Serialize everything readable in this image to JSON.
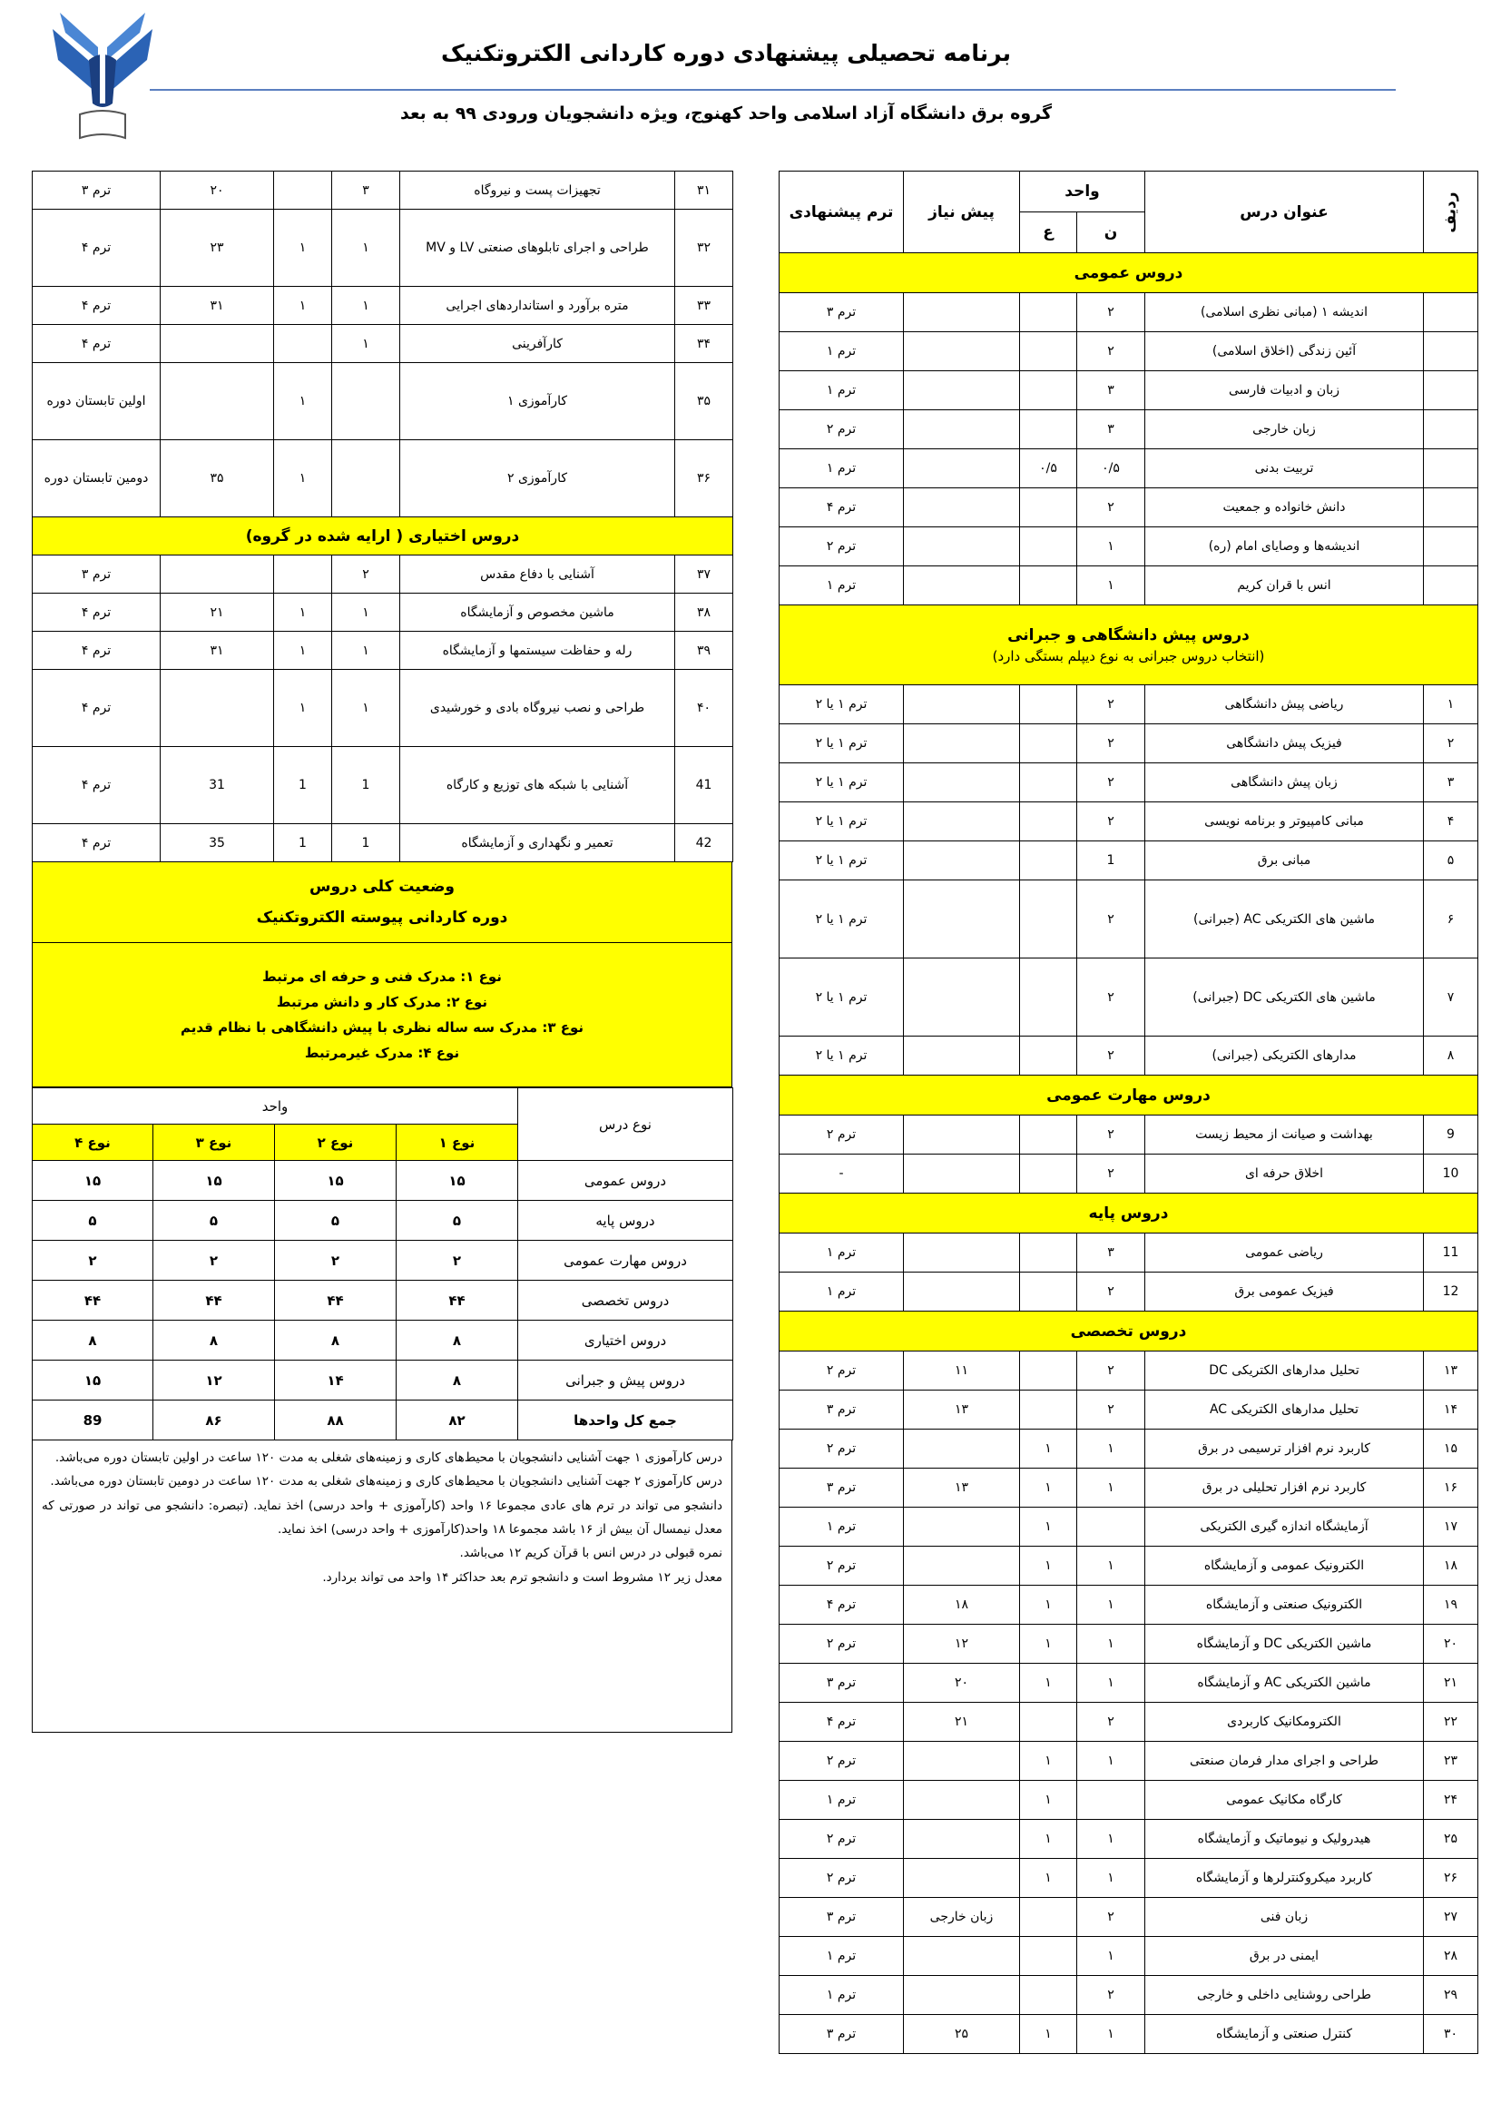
{
  "header": {
    "title": "برنامه تحصیلی پیشنهادی دوره کاردانی الکتروتکنیک",
    "subtitle": "گروه برق دانشگاه آزاد اسلامی واحد کهنوج، ویژه دانشجویان ورودی ۹۹ به بعد"
  },
  "right_table": {
    "columns": {
      "row": "ردیف",
      "title": "عنوان درس",
      "units": "واحد",
      "theory": "ن",
      "practical": "ع",
      "prereq": "پیش نیاز",
      "term": "ترم پیشنهادی"
    },
    "sections": [
      {
        "title": "دروس عمومی",
        "rows": [
          [
            null,
            "اندیشه ۱ (مبانی نظری اسلامی)",
            "۲",
            null,
            null,
            "ترم ۳"
          ],
          [
            null,
            "آئین زندگی (اخلاق اسلامی)",
            "۲",
            null,
            null,
            "ترم ۱"
          ],
          [
            null,
            "زبان و ادبیات فارسی",
            "۳",
            null,
            null,
            "ترم ۱"
          ],
          [
            null,
            "زبان خارجی",
            "۳",
            null,
            null,
            "ترم ۲"
          ],
          [
            null,
            "تربیت بدنی",
            "۰/۵",
            "۰/۵",
            null,
            "ترم ۱"
          ],
          [
            null,
            "دانش خانواده و جمعیت",
            "۲",
            null,
            null,
            "ترم ۴"
          ],
          [
            null,
            "اندیشه‌ها و وصایای امام (ره)",
            "۱",
            null,
            null,
            "ترم ۲"
          ],
          [
            null,
            "انس با قران کریم",
            "۱",
            null,
            null,
            "ترم ۱"
          ]
        ]
      },
      {
        "title": "دروس پیش دانشگاهی و جبرانی",
        "subtitle": "(انتخاب دروس جبرانی به نوع دیپلم بستگی دارد)",
        "rows": [
          [
            "۱",
            "ریاضی پیش دانشگاهی",
            "۲",
            null,
            null,
            "ترم ۱ یا ۲"
          ],
          [
            "۲",
            "فیزیک پیش دانشگاهی",
            "۲",
            null,
            null,
            "ترم ۱ یا ۲"
          ],
          [
            "۳",
            "زبان پیش دانشگاهی",
            "۲",
            null,
            null,
            "ترم ۱ یا ۲"
          ],
          [
            "۴",
            "مبانی کامپیوتر و برنامه نویسی",
            "۲",
            null,
            null,
            "ترم ۱ یا ۲"
          ],
          [
            "۵",
            "مبانی برق",
            "1",
            null,
            null,
            "ترم ۱ یا ۲"
          ],
          [
            "۶",
            "ماشین های الکتریکی AC (جبرانی)",
            "۲",
            null,
            null,
            "ترم ۱ یا ۲"
          ],
          [
            "۷",
            "ماشین های الکتریکی DC (جبرانی)",
            "۲",
            null,
            null,
            "ترم ۱ یا ۲"
          ],
          [
            "۸",
            "مدارهای الکتریکی (جبرانی)",
            "۲",
            null,
            null,
            "ترم ۱ یا ۲"
          ]
        ]
      },
      {
        "title": "دروس مهارت عمومی",
        "rows": [
          [
            "9",
            "بهداشت و صیانت از محیط زیست",
            "۲",
            null,
            null,
            "ترم ۲"
          ],
          [
            "10",
            "اخلاق حرفه ای",
            "۲",
            null,
            null,
            "-"
          ]
        ]
      },
      {
        "title": "دروس پایه",
        "rows": [
          [
            "11",
            "ریاضی عمومی",
            "۳",
            null,
            null,
            "ترم ۱"
          ],
          [
            "12",
            "فیزیک عمومی برق",
            "۲",
            null,
            null,
            "ترم ۱"
          ]
        ]
      },
      {
        "title": "دروس تخصصی",
        "rows": [
          [
            "۱۳",
            "تحلیل مدارهای الکتریکی DC",
            "۲",
            null,
            "۱۱",
            "ترم ۲"
          ],
          [
            "۱۴",
            "تحلیل مدارهای الکتریکی AC",
            "۲",
            null,
            "۱۳",
            "ترم ۳"
          ],
          [
            "۱۵",
            "کاربرد نرم افزار ترسیمی در برق",
            "۱",
            "۱",
            null,
            "ترم ۲"
          ],
          [
            "۱۶",
            "کاربرد نرم افزار تحلیلی در برق",
            "۱",
            "۱",
            "۱۳",
            "ترم ۳"
          ],
          [
            "۱۷",
            "آزمایشگاه اندازه گیری الکتریکی",
            null,
            "۱",
            null,
            "ترم ۱"
          ],
          [
            "۱۸",
            "الکترونیک عمومی و آزمایشگاه",
            "۱",
            "۱",
            null,
            "ترم ۲"
          ],
          [
            "۱۹",
            "الکترونیک صنعتی و آزمایشگاه",
            "۱",
            "۱",
            "۱۸",
            "ترم ۴"
          ],
          [
            "۲۰",
            "ماشین الکتریکی DC و آزمایشگاه",
            "۱",
            "۱",
            "۱۲",
            "ترم ۲"
          ],
          [
            "۲۱",
            "ماشین الکتریکی AC و آزمایشگاه",
            "۱",
            "۱",
            "۲۰",
            "ترم ۳"
          ],
          [
            "۲۲",
            "الکترومکانیک کاربردی",
            "۲",
            null,
            "۲۱",
            "ترم ۴"
          ],
          [
            "۲۳",
            "طراحی و اجرای مدار فرمان صنعتی",
            "۱",
            "۱",
            null,
            "ترم ۲"
          ],
          [
            "۲۴",
            "کارگاه مکانیک عمومی",
            null,
            "۱",
            null,
            "ترم ۱"
          ],
          [
            "۲۵",
            "هیدرولیک و نیوماتیک و آزمایشگاه",
            "۱",
            "۱",
            null,
            "ترم ۲"
          ],
          [
            "۲۶",
            "کاربرد میکروکنترلرها و آزمایشگاه",
            "۱",
            "۱",
            null,
            "ترم ۲"
          ],
          [
            "۲۷",
            "زبان فنی",
            "۲",
            null,
            "زبان خارجی",
            "ترم ۳"
          ],
          [
            "۲۸",
            "ایمنی در برق",
            "۱",
            null,
            null,
            "ترم ۱"
          ],
          [
            "۲۹",
            "طراحی روشنایی داخلی و خارجی",
            "۲",
            null,
            null,
            "ترم ۱"
          ],
          [
            "۳۰",
            "کنترل صنعتی و آزمایشگاه",
            "۱",
            "۱",
            "۲۵",
            "ترم ۳"
          ]
        ]
      }
    ]
  },
  "left_table": {
    "rows": [
      [
        "۳۱",
        "تجهیزات پست و نیروگاه",
        "۳",
        null,
        "۲۰",
        "ترم ۳"
      ],
      [
        "۳۲",
        "طراحی و اجرای تابلوهای صنعتی LV و MV",
        "۱",
        "۱",
        "۲۳",
        "ترم ۴"
      ],
      [
        "۳۳",
        "متره برآورد و استانداردهای اجرایی",
        "۱",
        "۱",
        "۳۱",
        "ترم ۴"
      ],
      [
        "۳۴",
        "کارآفرینی",
        "۱",
        null,
        null,
        "ترم ۴"
      ],
      [
        "۳۵",
        "کارآموزی ۱",
        null,
        "۱",
        null,
        "اولین تابستان دوره"
      ],
      [
        "۳۶",
        "کارآموزی ۲",
        null,
        "۱",
        "۳۵",
        "دومین تابستان دوره"
      ]
    ],
    "sections": [
      {
        "title": "دروس اختیاری ( ارایه شده در گروه)",
        "rows": [
          [
            "۳۷",
            "آشنایی با دفاع مقدس",
            "۲",
            null,
            null,
            "ترم ۳"
          ],
          [
            "۳۸",
            "ماشین مخصوص و آزمایشگاه",
            "۱",
            "۱",
            "۲۱",
            "ترم ۴"
          ],
          [
            "۳۹",
            "رله و حفاظت سیستمها و آزمایشگاه",
            "۱",
            "۱",
            "۳۱",
            "ترم ۴"
          ],
          [
            "۴۰",
            "طراحی و نصب نیروگاه بادی و خورشیدی",
            "۱",
            "۱",
            null,
            "ترم ۴"
          ],
          [
            "41",
            "آشنایی با شبکه های توزیع و کارگاه",
            "1",
            "1",
            "31",
            "ترم ۴"
          ],
          [
            "42",
            "تعمیر و نگهداری و آزمایشگاه",
            "1",
            "1",
            "35",
            "ترم ۴"
          ]
        ]
      }
    ]
  },
  "status": {
    "title": [
      "وضعیت کلی دروس",
      "دوره کاردانی پیوسته الکتروتکنیک"
    ],
    "types": [
      "نوع ۱: مدرک فنی و حرفه ای مرتبط",
      "نوع ۲: مدرک کار و دانش مرتبط",
      "نوع ۳: مدرک سه ساله نظری با پیش دانشگاهی با نظام قدیم",
      "نوع ۴: مدرک غیرمرتبط"
    ],
    "summary": {
      "columns": {
        "course_type": "نوع درس",
        "units": "واحد",
        "types": [
          "نوع ۱",
          "نوع ۲",
          "نوع ۳",
          "نوع ۴"
        ]
      },
      "rows": [
        [
          "دروس عمومی",
          "۱۵",
          "۱۵",
          "۱۵",
          "۱۵"
        ],
        [
          "دروس پایه",
          "۵",
          "۵",
          "۵",
          "۵"
        ],
        [
          "دروس مهارت عمومی",
          "۲",
          "۲",
          "۲",
          "۲"
        ],
        [
          "دروس تخصصی",
          "۴۴",
          "۴۴",
          "۴۴",
          "۴۴"
        ],
        [
          "دروس اختیاری",
          "۸",
          "۸",
          "۸",
          "۸"
        ],
        [
          "دروس پیش و جبرانی",
          "۸",
          "۱۴",
          "۱۲",
          "۱۵"
        ],
        [
          "جمع کل واحدها",
          "۸۲",
          "۸۸",
          "۸۶",
          "89"
        ]
      ]
    },
    "notes": [
      "درس کارآموزی ۱ جهت آشنایی دانشجویان با محیط‌های کاری و زمینه‌های شغلی به مدت ۱۲۰ ساعت در اولین تابستان دوره می‌باشد.",
      "درس کارآموزی ۲ جهت آشنایی دانشجویان با محیط‌های کاری و زمینه‌های شغلی به مدت ۱۲۰ ساعت در دومین تابستان دوره می‌باشد.",
      "دانشجو می تواند در ترم های عادی مجموعا ۱۶ واحد (کارآموزی + واحد درسی) اخذ نماید. (تبصره: دانشجو می تواند در صورتی که معدل نیمسال آن بیش از ۱۶ باشد مجموعا ۱۸ واحد(کارآموزی + واحد درسی) اخذ نماید.",
      "نمره قبولی در درس انس با قرآن کریم ۱۲ می‌باشد.",
      "معدل زیر ۱۲ مشروط است و دانشجو ترم بعد حداکثر ۱۴ واحد می تواند بردارد."
    ]
  }
}
